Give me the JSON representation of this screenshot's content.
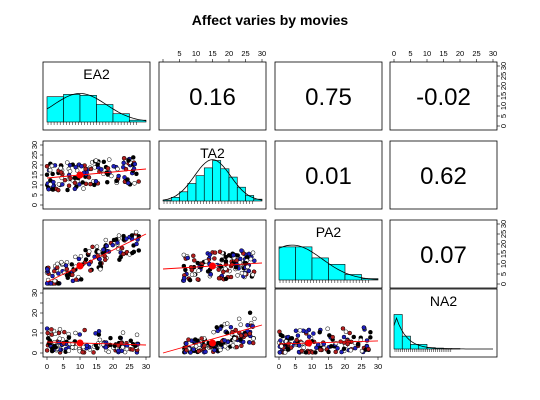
{
  "title": "Affect varies by movies",
  "chart_data": {
    "type": "scatter",
    "subtype": "pairs-panels",
    "variables": [
      "EA2",
      "TA2",
      "PA2",
      "NA2"
    ],
    "axis_range": [
      0,
      30
    ],
    "axis_ticks": [
      0,
      5,
      10,
      15,
      20,
      25,
      30
    ],
    "tick_labels": [
      "0",
      "5",
      "10",
      "15",
      "20",
      "25",
      "30"
    ],
    "correlations": [
      {
        "row": 0,
        "col": 1,
        "label": "0.16"
      },
      {
        "row": 0,
        "col": 2,
        "label": "0.75"
      },
      {
        "row": 0,
        "col": 3,
        "label": "-0.02"
      },
      {
        "row": 1,
        "col": 2,
        "label": "0.01"
      },
      {
        "row": 1,
        "col": 3,
        "label": "0.62"
      },
      {
        "row": 2,
        "col": 3,
        "label": "0.07"
      }
    ],
    "histograms": [
      {
        "name": "EA2",
        "bins": [
          0,
          5,
          10,
          15,
          20,
          25,
          30
        ],
        "values": [
          0.55,
          0.6,
          0.58,
          0.38,
          0.18,
          0.04
        ]
      },
      {
        "name": "TA2",
        "bins": [
          4,
          6,
          8,
          10,
          12,
          14,
          16,
          18,
          20,
          22,
          24,
          26,
          28
        ],
        "values": [
          0.02,
          0.08,
          0.2,
          0.38,
          0.55,
          0.72,
          0.88,
          0.7,
          0.52,
          0.3,
          0.12,
          0.04
        ]
      },
      {
        "name": "PA2",
        "bins": [
          0,
          5,
          10,
          15,
          20,
          25,
          30
        ],
        "values": [
          0.72,
          0.72,
          0.48,
          0.34,
          0.12,
          0.03
        ]
      },
      {
        "name": "NA2",
        "bins": [
          0,
          2.5,
          5,
          7.5,
          10,
          12.5,
          15,
          17.5,
          20
        ],
        "values": [
          0.75,
          0.28,
          0.1,
          0.1,
          0.03,
          0.02,
          0.01,
          0.01
        ]
      }
    ],
    "point_colors": {
      "black": "#000000",
      "red": "#b21e1e",
      "blue": "#1f1fbf",
      "white": "#ffffff"
    },
    "histogram_fill": "#00ffff",
    "fit_color": "#ff0000",
    "grid": false
  }
}
